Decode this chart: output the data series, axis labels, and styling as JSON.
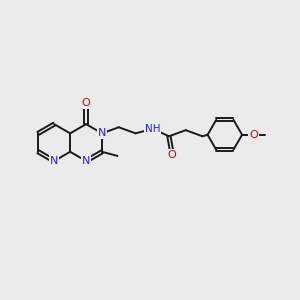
{
  "background_color": "#ebebeb",
  "bond_color": "#1a1a1a",
  "N_color": "#2020ff",
  "O_color": "#dd0000",
  "lw": 1.4,
  "fs": 7.5,
  "fig_w": 3.0,
  "fig_h": 3.0,
  "dpi": 100,
  "xlim": [
    0,
    10
  ],
  "ylim": [
    0,
    10
  ],
  "r_ring": 0.62,
  "r_ph": 0.58,
  "db_off": 0.055
}
